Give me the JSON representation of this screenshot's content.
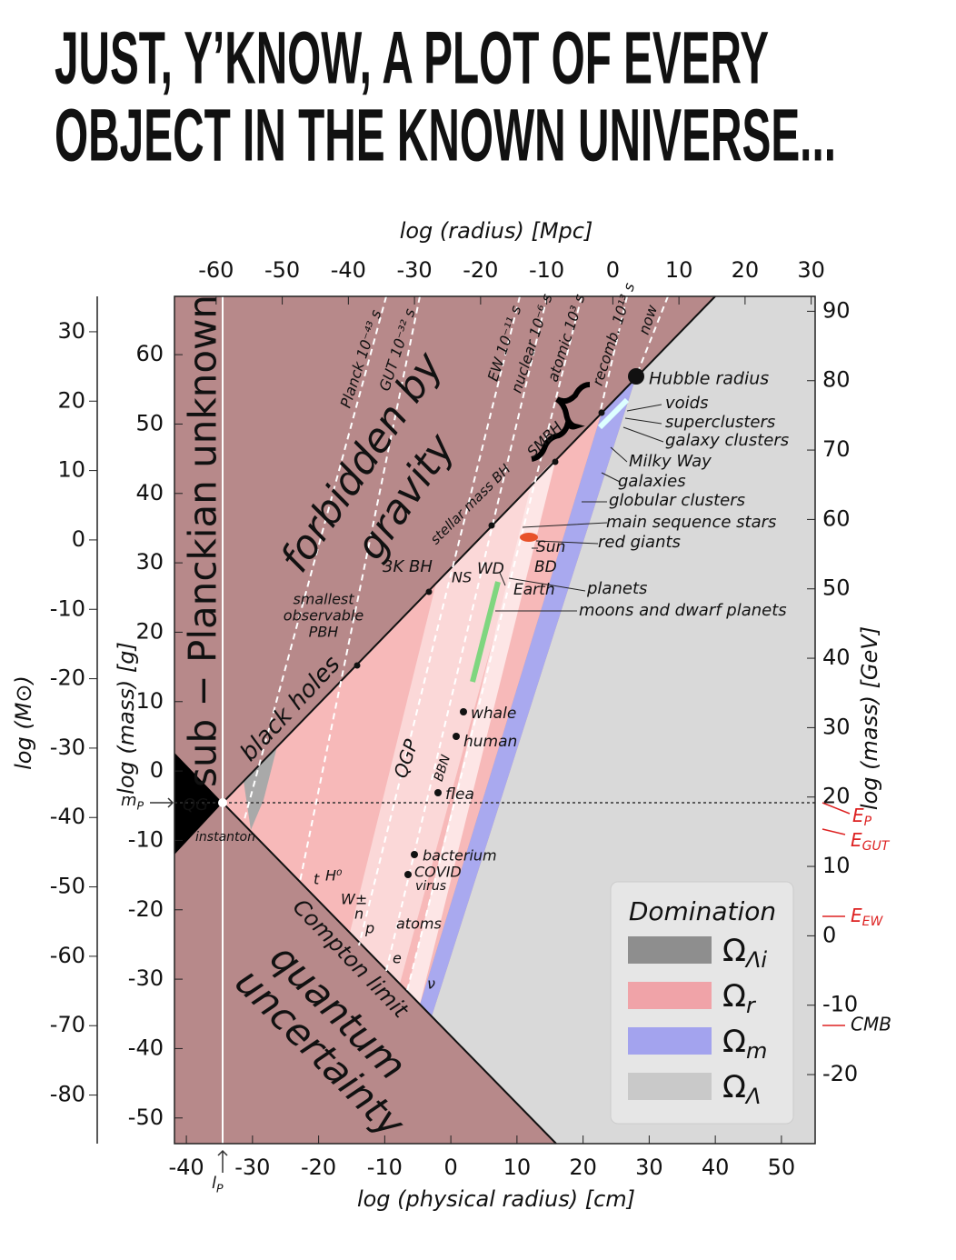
{
  "header": {
    "title_lines": [
      "JUST, Y’KNOW, A PLOT OF EVERY",
      "OBJECT IN THE KNOWN UNIVERSE..."
    ]
  },
  "chart_data": {
    "type": "region-map",
    "xlabel": "log (physical radius) [cm]",
    "xlim": [
      -41.8,
      55.1
    ],
    "xticks": [
      -40,
      -30,
      -20,
      -10,
      0,
      10,
      20,
      30,
      40,
      50
    ],
    "x2label": "log (radius) [Mpc]",
    "x2lim": [
      -66.3,
      30.6
    ],
    "x2ticks": [
      -60,
      -50,
      -40,
      -30,
      -20,
      -10,
      0,
      10,
      20,
      30
    ],
    "ylabel": "log (mass) [g]",
    "ylim": [
      -53.7,
      68.4
    ],
    "yticks": [
      -50,
      -40,
      -30,
      -20,
      -10,
      0,
      10,
      20,
      30,
      40,
      50,
      60
    ],
    "y2label": "log (mass) [GeV]",
    "y2lim": [
      -29.95,
      92.15
    ],
    "y2ticks": [
      -20,
      -10,
      0,
      10,
      20,
      30,
      40,
      50,
      60,
      70,
      80,
      90
    ],
    "y3label": "log (M⊙)",
    "y3lim": [
      -87.0,
      35.1
    ],
    "y3ticks": [
      -80,
      -70,
      -60,
      -50,
      -40,
      -30,
      -20,
      -10,
      0,
      10,
      20,
      30
    ],
    "regions": {
      "sub_planckian": "sub − Planckian unknown",
      "forbidden": [
        "forbidden by",
        "gravity"
      ],
      "quantum": [
        "quantum",
        "uncertainty"
      ],
      "black_holes": "black holes",
      "compton": "Compton limit",
      "qgp": "QGP",
      "bbn": "BBN",
      "qg": "QG",
      "instanton": "instanton"
    },
    "epochs": {
      "planck": "Planck 10⁻⁴³ s",
      "gut": "GUT 10⁻³² s",
      "ew": "EW 10⁻¹¹ s",
      "nuclear": "nuclear 10⁻⁶ s",
      "atomic": "atomic 10³ s",
      "recomb": "recomb. 10¹³ s",
      "now": "now"
    },
    "objects": {
      "hubble": "Hubble radius",
      "voids": "voids",
      "superclusters": "superclusters",
      "galaxy_clusters": "galaxy clusters",
      "milky_way": "Milky Way",
      "galaxies": "galaxies",
      "globular": "globular clusters",
      "main_sequence": "main sequence stars",
      "red_giants": "red giants",
      "sun": "Sun",
      "bd": "BD",
      "ns": "NS",
      "wd": "WD",
      "earth": "Earth",
      "planets": "planets",
      "moons": "moons and dwarf planets",
      "whale": "whale",
      "human": "human",
      "flea": "flea",
      "bacterium": "bacterium",
      "covid": "COVID",
      "virus": "virus",
      "atoms": "atoms",
      "t": "t",
      "higgs": "H⁰",
      "w": "W±",
      "n": "n",
      "p": "p",
      "e": "e",
      "nu": "ν",
      "stellar_bh": "stellar mass BH",
      "smbh": "SMBH",
      "bh3k": "3K BH",
      "pbh": [
        "smallest",
        "observable",
        "PBH"
      ]
    },
    "markers": {
      "mp": {
        "main": "m",
        "sub": "P"
      },
      "lp": {
        "main": "l",
        "sub": "P"
      },
      "ep": {
        "main": "E",
        "sub": "P"
      },
      "egut": {
        "main": "E",
        "sub": "GUT"
      },
      "eew": {
        "main": "E",
        "sub": "EW"
      },
      "cmb": "CMB"
    },
    "legend": {
      "title": "Domination",
      "entries": [
        {
          "symbol": "Ω",
          "sub": "Λi",
          "color": "#8e8e8e"
        },
        {
          "symbol": "Ω",
          "sub": "r",
          "color": "#f0a3a8"
        },
        {
          "symbol": "Ω",
          "sub": "m",
          "color": "#a3a3ee"
        },
        {
          "symbol": "Ω",
          "sub": "Λ",
          "color": "#c9c9c9"
        }
      ]
    }
  }
}
